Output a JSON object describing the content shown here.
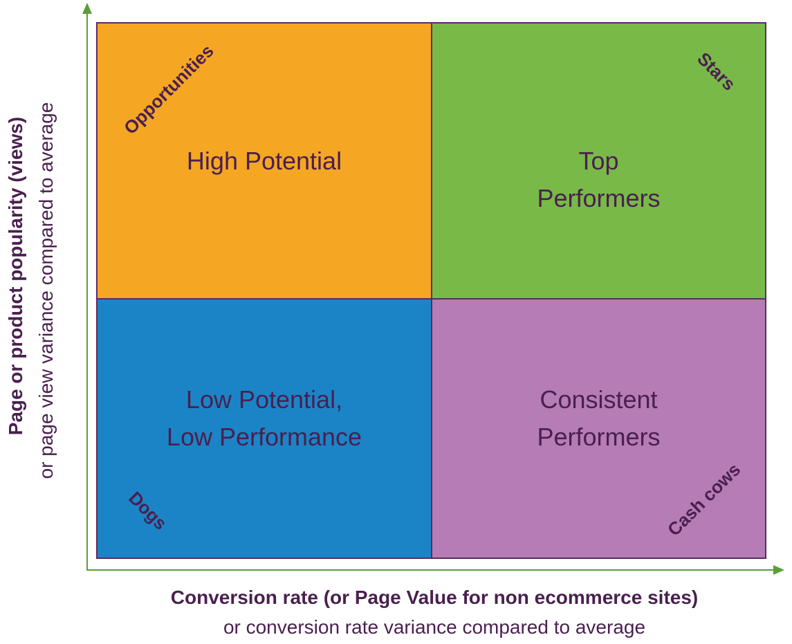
{
  "quadrants": {
    "top_left": {
      "label": "High Potential",
      "tag": "Opportunities",
      "color": "#f5a623"
    },
    "top_right": {
      "label_line1": "Top",
      "label_line2": "Performers",
      "tag": "Stars",
      "color": "#78b947"
    },
    "bottom_left": {
      "label_line1": "Low Potential,",
      "label_line2": "Low Performance",
      "tag": "Dogs",
      "color": "#1b84c6"
    },
    "bottom_right": {
      "label_line1": "Consistent",
      "label_line2": "Performers",
      "tag": "Cash cows",
      "color": "#b57cb5"
    }
  },
  "axes": {
    "y_title": "Page or product popularity (views)",
    "y_subtitle": "or page view variance compared to average",
    "x_title": "Conversion rate (or Page Value for non ecommerce sites)",
    "x_subtitle": "or conversion rate variance compared to average",
    "axis_color": "#5a9e3a"
  }
}
